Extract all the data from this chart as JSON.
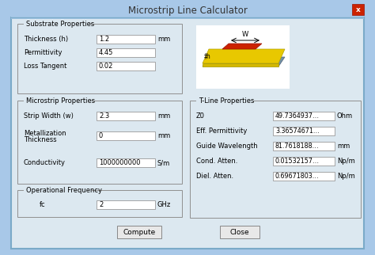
{
  "title": "Microstrip Line Calculator",
  "bg_outer": "#a8c8e8",
  "bg_dialog": "#dce8f0",
  "bg_content": "#dce8f0",
  "close_btn_color": "#cc2200",
  "substrate_label": "Substrate Properties",
  "substrate_fields": [
    {
      "label": "Thickness (h)",
      "value": "1.2",
      "unit": "mm"
    },
    {
      "label": "Permittivity",
      "value": "4.45",
      "unit": ""
    },
    {
      "label": "Loss Tangent",
      "value": "0.02",
      "unit": ""
    }
  ],
  "microstrip_label": "Microstrip Properties",
  "microstrip_fields": [
    {
      "label": "Strip Width (w)",
      "value": "2.3",
      "unit": "mm"
    },
    {
      "label": "Metallization\nThickness",
      "value": "0",
      "unit": "mm"
    },
    {
      "label": "Conductivity",
      "value": "1000000000",
      "unit": "S/m"
    }
  ],
  "frequency_label": "Operational Frequency",
  "frequency_fields": [
    {
      "label": "fc",
      "value": "2",
      "unit": "GHz"
    }
  ],
  "tline_label": "T-Line Properties",
  "tline_fields": [
    {
      "label": "Z0",
      "value": "49.7364937…",
      "unit": "Ohm"
    },
    {
      "label": "Eff. Permittivity",
      "value": "3.36574671…",
      "unit": ""
    },
    {
      "label": "Guide Wavelength",
      "value": "81.7618188…",
      "unit": "mm"
    },
    {
      "label": "Cond. Atten.",
      "value": "0.01532157…",
      "unit": "Np/m"
    },
    {
      "label": "Diel. Atten.",
      "value": "0.69671803…",
      "unit": "Np/m"
    }
  ],
  "compute_btn": "Compute",
  "close_btn": "Close",
  "img_strip_color": "#cc2200",
  "img_substrate_color": "#e8c800",
  "img_ground_color": "#7090a8"
}
